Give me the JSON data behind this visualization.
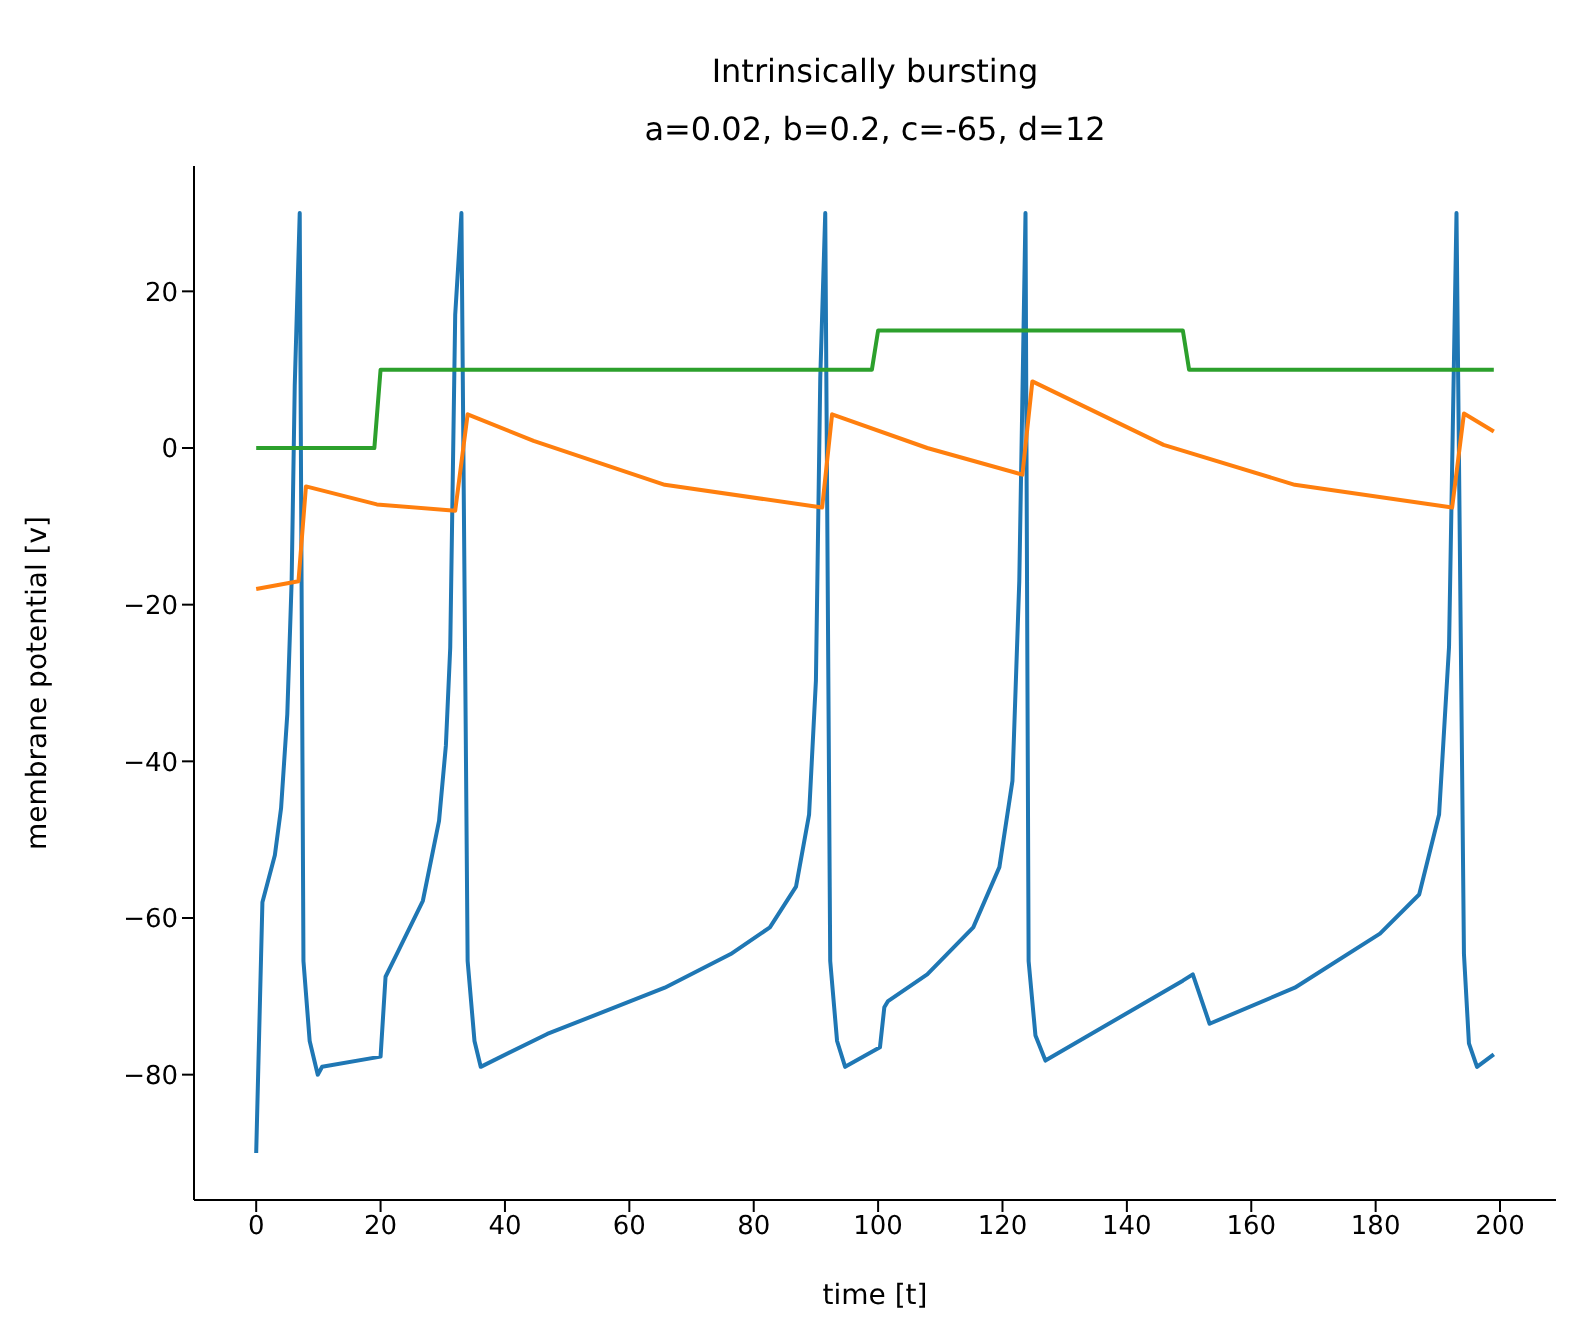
{
  "chart_data": {
    "type": "line",
    "title": "Intrinsically bursting",
    "subtitle": "a=0.02, b=0.2, c=-65, d=12",
    "xlabel": "time [t]",
    "ylabel": "membrane potential [v]",
    "xlim": [
      -10,
      209
    ],
    "ylim": [
      -96,
      36
    ],
    "xticks": [
      0,
      20,
      40,
      60,
      80,
      100,
      120,
      140,
      160,
      180,
      200
    ],
    "yticks": [
      -80,
      -60,
      -40,
      -20,
      0,
      20
    ],
    "grid": false,
    "legend": false,
    "marker": "none",
    "line_style": "solid",
    "series": [
      {
        "color": "#1f77b4",
        "x": [
          0,
          1,
          3,
          4,
          5,
          5.7,
          6.2,
          7,
          7.6,
          8.6,
          9.9,
          10.6,
          20,
          20.8,
          22.6,
          26.8,
          29.4,
          30.5,
          31.2,
          32,
          33,
          34,
          35.1,
          36.1,
          46.8,
          65.7,
          76.3,
          82.6,
          86.8,
          88.9,
          90,
          90.7,
          91.5,
          92.3,
          93.4,
          94.7,
          100.3,
          101,
          101.6,
          107.9,
          115.3,
          119.5,
          121.6,
          122.7,
          123.7,
          124.2,
          125.3,
          126.9,
          149,
          150.6,
          153.3,
          167,
          180.7,
          187,
          190.2,
          191.8,
          193,
          194.2,
          195,
          196.3,
          199
        ],
        "values": [
          -90,
          -58,
          -52,
          -46,
          -34,
          -17,
          8,
          30,
          -65.5,
          -75.7,
          -80,
          -79,
          -77.7,
          -67.5,
          -64.6,
          -57.8,
          -47.6,
          -38,
          -25.5,
          17,
          30,
          -65.5,
          -75.7,
          -79,
          -74.8,
          -68.9,
          -64.6,
          -61.2,
          -56,
          -46.8,
          -29.7,
          9,
          30,
          -65.5,
          -75.7,
          -79,
          -76.5,
          -71.4,
          -70.6,
          -67.2,
          -61.2,
          -53.5,
          -42.5,
          -17,
          30,
          -65.5,
          -75,
          -78.2,
          -68,
          -67.2,
          -73.5,
          -68.9,
          -62,
          -57,
          -46.8,
          -25.4,
          30,
          -64.6,
          -76,
          -79,
          -77.4
        ]
      },
      {
        "color": "#ff7f0e",
        "x": [
          0,
          6.8,
          8,
          19.4,
          32,
          34,
          44.6,
          65.7,
          91,
          92.6,
          107.9,
          123.2,
          124.8,
          145.9,
          167,
          192.3,
          194.2,
          199
        ],
        "values": [
          -18,
          -17,
          -4.9,
          -7.2,
          -8,
          4.3,
          0.9,
          -4.7,
          -7.6,
          4.3,
          0,
          -3.4,
          8.5,
          0.4,
          -4.7,
          -7.6,
          4.4,
          2.1
        ]
      },
      {
        "color": "#2ca02c",
        "x": [
          0,
          19,
          20,
          99,
          100,
          149,
          150,
          199
        ],
        "values": [
          0,
          0,
          10,
          10,
          15,
          15,
          10,
          10
        ]
      }
    ]
  }
}
